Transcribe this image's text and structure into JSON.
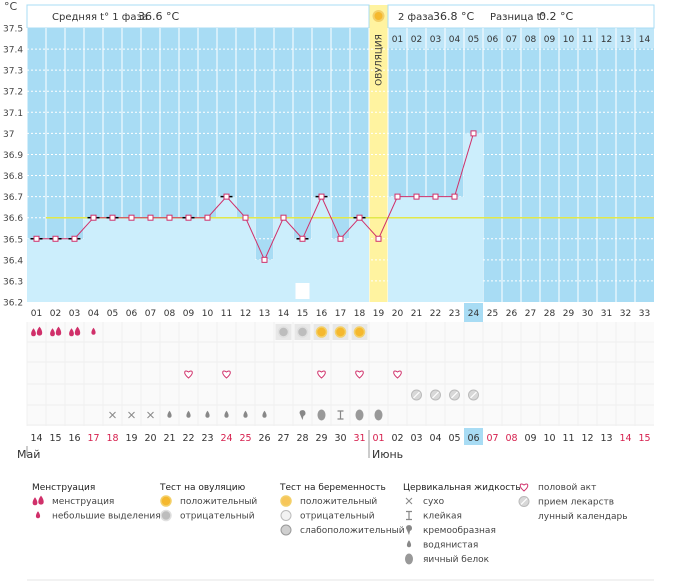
{
  "chart_data": {
    "type": "line",
    "title": "",
    "unit_label": "°C",
    "ylim": [
      36.2,
      37.5
    ],
    "yticks": [
      "37.5",
      "37.4",
      "37.3",
      "37.2",
      "37.1",
      "37",
      "36.9",
      "36.8",
      "36.7",
      "36.6",
      "36.5",
      "36.4",
      "36.3",
      "36.2"
    ],
    "cycle_days": [
      "01",
      "02",
      "03",
      "04",
      "05",
      "06",
      "07",
      "08",
      "09",
      "10",
      "11",
      "12",
      "13",
      "14",
      "15",
      "16",
      "17",
      "18",
      "19",
      "20",
      "21",
      "22",
      "23",
      "24",
      "25",
      "26",
      "27",
      "28",
      "29",
      "30",
      "31",
      "32",
      "33"
    ],
    "calendar_days": [
      {
        "d": "14",
        "red": false
      },
      {
        "d": "15",
        "red": false
      },
      {
        "d": "16",
        "red": false
      },
      {
        "d": "17",
        "red": true
      },
      {
        "d": "18",
        "red": true
      },
      {
        "d": "19",
        "red": false
      },
      {
        "d": "20",
        "red": false
      },
      {
        "d": "21",
        "red": false
      },
      {
        "d": "22",
        "red": false
      },
      {
        "d": "23",
        "red": false
      },
      {
        "d": "24",
        "red": true
      },
      {
        "d": "25",
        "red": true
      },
      {
        "d": "26",
        "red": false
      },
      {
        "d": "27",
        "red": false
      },
      {
        "d": "28",
        "red": false
      },
      {
        "d": "29",
        "red": false
      },
      {
        "d": "30",
        "red": false
      },
      {
        "d": "31",
        "red": true
      },
      {
        "d": "01",
        "red": true
      },
      {
        "d": "02",
        "red": false
      },
      {
        "d": "03",
        "red": false
      },
      {
        "d": "04",
        "red": false
      },
      {
        "d": "05",
        "red": false
      },
      {
        "d": "06",
        "red": false
      },
      {
        "d": "07",
        "red": true
      },
      {
        "d": "08",
        "red": true
      },
      {
        "d": "09",
        "red": false
      },
      {
        "d": "10",
        "red": false
      },
      {
        "d": "11",
        "red": false
      },
      {
        "d": "12",
        "red": false
      },
      {
        "d": "13",
        "red": false
      },
      {
        "d": "14",
        "red": true
      },
      {
        "d": "15",
        "red": true
      }
    ],
    "months": [
      "Май",
      "Июнь"
    ],
    "temperatures": [
      36.5,
      36.5,
      36.5,
      36.6,
      36.6,
      36.6,
      36.6,
      36.6,
      36.6,
      36.6,
      36.7,
      36.6,
      36.4,
      36.6,
      36.5,
      36.7,
      36.5,
      36.6,
      36.5,
      36.7,
      36.7,
      36.7,
      36.7,
      37.0
    ],
    "marked_days": [
      1,
      2,
      3,
      4,
      5,
      9,
      11,
      15,
      16,
      18
    ],
    "coverline": 36.6,
    "ovulation_day": 19,
    "ovulation_label": "ОВУЛЯЦИЯ",
    "phase2_days": [
      "01",
      "02",
      "03",
      "04",
      "05",
      "06",
      "07",
      "08",
      "09",
      "10",
      "11",
      "12",
      "13",
      "14"
    ],
    "today_day": 24,
    "today_calendar": "06",
    "phase1_text": "Средняя t° 1 фаза",
    "phase1_value": "36.6 °C",
    "phase2_text": "2 фаза",
    "phase2_value": "36.8 °C",
    "diff_text": "Разница t°",
    "diff_value": "0.2 °C",
    "moon_day": 15,
    "rows": {
      "menstruation": [
        {
          "day": 1,
          "kind": "menstruation"
        },
        {
          "day": 2,
          "kind": "menstruation"
        },
        {
          "day": 3,
          "kind": "menstruation"
        },
        {
          "day": 4,
          "kind": "spotting"
        }
      ],
      "ovulation_test": [
        {
          "day": 14,
          "kind": "negative"
        },
        {
          "day": 15,
          "kind": "negative"
        },
        {
          "day": 16,
          "kind": "positive"
        },
        {
          "day": 17,
          "kind": "positive"
        },
        {
          "day": 18,
          "kind": "positive"
        }
      ],
      "sex": [
        9,
        11,
        16,
        18,
        20
      ],
      "medicine": [
        21,
        22,
        23,
        24
      ],
      "cervical": [
        {
          "day": 5,
          "kind": "dry"
        },
        {
          "day": 6,
          "kind": "dry"
        },
        {
          "day": 7,
          "kind": "dry"
        },
        {
          "day": 8,
          "kind": "watery"
        },
        {
          "day": 9,
          "kind": "watery"
        },
        {
          "day": 10,
          "kind": "watery"
        },
        {
          "day": 11,
          "kind": "watery"
        },
        {
          "day": 12,
          "kind": "watery"
        },
        {
          "day": 13,
          "kind": "watery"
        },
        {
          "day": 15,
          "kind": "creamy"
        },
        {
          "day": 16,
          "kind": "eggwhite"
        },
        {
          "day": 17,
          "kind": "sticky"
        },
        {
          "day": 18,
          "kind": "eggwhite"
        },
        {
          "day": 19,
          "kind": "eggwhite"
        }
      ]
    }
  },
  "legend": {
    "menstruation": {
      "title": "Менструация",
      "items": [
        {
          "icon": "menstruation-icon",
          "label": "менструация"
        },
        {
          "icon": "spotting-icon",
          "label": "небольшие выделения"
        }
      ]
    },
    "ovulation_test": {
      "title": "Тест на овуляцию",
      "items": [
        {
          "icon": "positive-test-icon",
          "label": "положительный"
        },
        {
          "icon": "negative-test-icon",
          "label": "отрицательный"
        }
      ]
    },
    "pregnancy_test": {
      "title": "Тест на беременность",
      "items": [
        {
          "icon": "preg-positive-icon",
          "label": "положительный"
        },
        {
          "icon": "preg-negative-icon",
          "label": "отрицательный"
        },
        {
          "icon": "preg-weak-icon",
          "label": "слабоположительный"
        }
      ]
    },
    "cervical": {
      "title": "Цервикальная жидкость",
      "items": [
        {
          "icon": "dry-icon",
          "label": "сухо"
        },
        {
          "icon": "sticky-icon",
          "label": "клейкая"
        },
        {
          "icon": "creamy-icon",
          "label": "кремообразная"
        },
        {
          "icon": "watery-icon",
          "label": "водянистая"
        },
        {
          "icon": "eggwhite-icon",
          "label": "яичный белок"
        }
      ]
    },
    "other": {
      "items": [
        {
          "icon": "heart-icon",
          "label": "половой акт"
        },
        {
          "icon": "pill-icon",
          "label": "прием лекарств"
        },
        {
          "icon": "moon-icon",
          "label": "лунный календарь"
        }
      ]
    }
  },
  "colors": {
    "sky": "#a8dcf4",
    "bar": "#cceefc",
    "line": "#d0306a",
    "coverline": "#e2e84a",
    "ovulation": "#fff3a0",
    "today": "#a8dcf4",
    "red_text": "#d6204e"
  }
}
